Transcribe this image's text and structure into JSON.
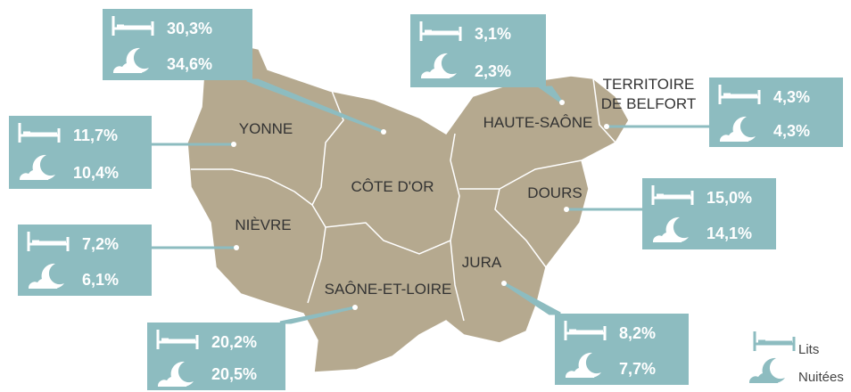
{
  "regions": [
    {
      "label": [
        "CÔTE D'OR"
      ],
      "lits": "30,3%",
      "nuitees": "34,6%"
    },
    {
      "label": [
        "YONNE"
      ],
      "lits": "11,7%",
      "nuitees": "10,4%"
    },
    {
      "label": [
        "NIÈVRE"
      ],
      "lits": "7,2%",
      "nuitees": "6,1%"
    },
    {
      "label": [
        "SAÔNE-ET-LOIRE"
      ],
      "lits": "20,2%",
      "nuitees": "20,5%"
    },
    {
      "label": [
        "HAUTE-SAÔNE"
      ],
      "lits": "3,1%",
      "nuitees": "2,3%"
    },
    {
      "label": [
        "TERRITOIRE",
        "DE BELFORT"
      ],
      "lits": "4,3%",
      "nuitees": "4,3%"
    },
    {
      "label": [
        "DOURS"
      ],
      "lits": "15,0%",
      "nuitees": "14,1%"
    },
    {
      "label": [
        "JURA"
      ],
      "lits": "8,2%",
      "nuitees": "7,7%"
    }
  ],
  "legend": {
    "lits": "Lits",
    "nuitees": "Nuitées"
  }
}
